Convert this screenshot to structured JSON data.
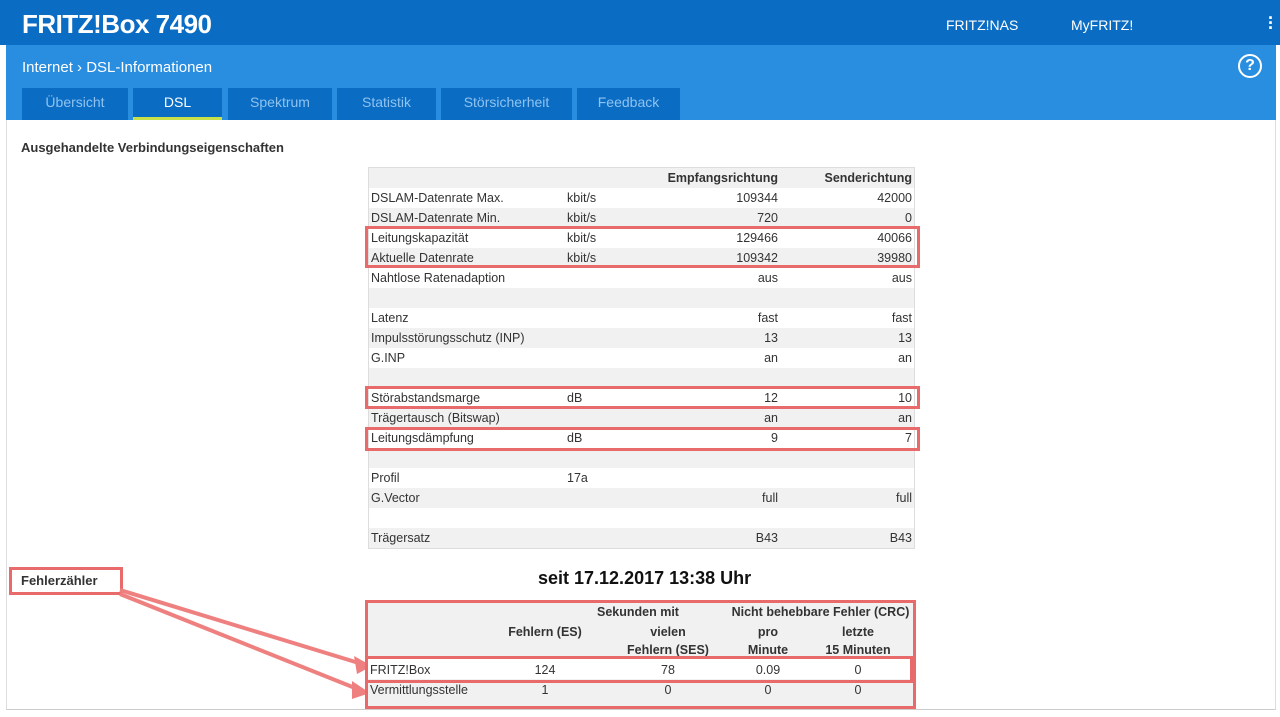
{
  "header": {
    "brand": "FRITZ!Box 7490",
    "links": [
      "FRITZ!NAS",
      "MyFRITZ!"
    ],
    "menu_icon": "kebab-menu-icon"
  },
  "breadcrumb": {
    "parent": "Internet",
    "separator": "›",
    "current": "DSL-Informationen"
  },
  "tabs": [
    {
      "label": "Übersicht"
    },
    {
      "label": "DSL",
      "active": true
    },
    {
      "label": "Spektrum"
    },
    {
      "label": "Statistik"
    },
    {
      "label": "Störsicherheit"
    },
    {
      "label": "Feedback"
    }
  ],
  "section_title": "Ausgehandelte Verbindungseigenschaften",
  "table": {
    "headers": [
      "",
      "",
      "Empfangsrichtung",
      "Senderichtung"
    ],
    "rows": [
      [
        "DSLAM-Datenrate Max.",
        "kbit/s",
        "109344",
        "42000"
      ],
      [
        "DSLAM-Datenrate Min.",
        "kbit/s",
        "720",
        "0"
      ],
      [
        "Leitungskapazität",
        "kbit/s",
        "129466",
        "40066"
      ],
      [
        "Aktuelle Datenrate",
        "kbit/s",
        "109342",
        "39980"
      ],
      [
        "Nahtlose Ratenadaption",
        "",
        "aus",
        "aus"
      ],
      [
        "",
        "",
        "",
        ""
      ],
      [
        "Latenz",
        "",
        "fast",
        "fast"
      ],
      [
        "Impulsstörungsschutz (INP)",
        "",
        "13",
        "13"
      ],
      [
        "G.INP",
        "",
        "an",
        "an"
      ],
      [
        "",
        "",
        "",
        ""
      ],
      [
        "Störabstandsmarge",
        "dB",
        "12",
        "10"
      ],
      [
        "Trägertausch (Bitswap)",
        "",
        "an",
        "an"
      ],
      [
        "Leitungsdämpfung",
        "dB",
        "9",
        "7"
      ],
      [
        "",
        "",
        "",
        ""
      ],
      [
        "Profil",
        "17a",
        "",
        ""
      ],
      [
        "G.Vector",
        "",
        "full",
        "full"
      ],
      [
        "",
        "",
        "",
        ""
      ],
      [
        "Trägersatz",
        "",
        "B43",
        "B43"
      ]
    ]
  },
  "errors": {
    "label": "Fehlerzähler",
    "since": "seit 17.12.2017 13:38 Uhr",
    "group1": "Sekunden mit",
    "group2": "Nicht behebbare Fehler (CRC)",
    "col1": "Fehlern (ES)",
    "col2a": "vielen",
    "col2b": "Fehlern (SES)",
    "col3a": "pro",
    "col3b": "Minute",
    "col4a": "letzte",
    "col4b": "15 Minuten",
    "rows": [
      [
        "FRITZ!Box",
        "124",
        "78",
        "0.09",
        "0"
      ],
      [
        "Vermittlungsstelle",
        "1",
        "0",
        "0",
        "0"
      ]
    ]
  },
  "colors": {
    "header": "#0b6cc4",
    "subheader": "#2a8ee0",
    "highlight": "#e86a6a",
    "tab_active": "#c8e04a"
  }
}
